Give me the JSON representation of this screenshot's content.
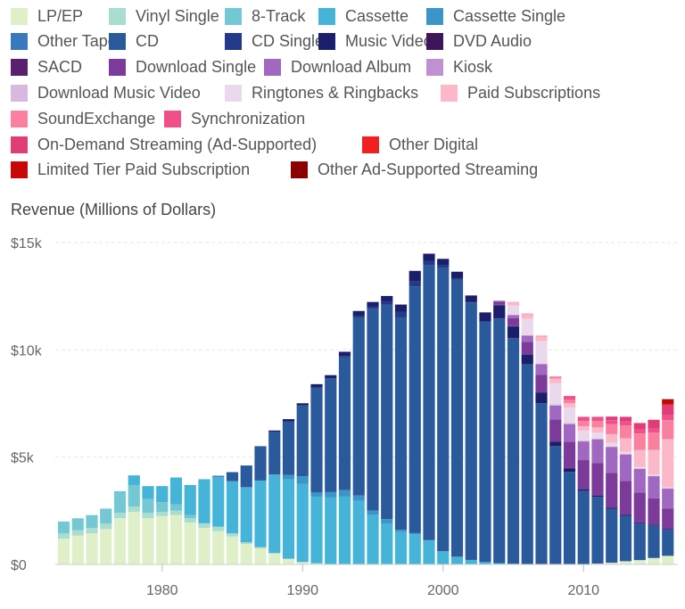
{
  "chart_data": {
    "type": "bar",
    "stacked": true,
    "ylabel": "Revenue (Millions of Dollars)",
    "xlabel": "",
    "ylim": [
      0,
      15000
    ],
    "y_ticks": [
      0,
      5000,
      10000,
      15000
    ],
    "y_tick_labels": [
      "$0",
      "$5k",
      "$10k",
      "$15k"
    ],
    "x_ticks": [
      1980,
      1990,
      2000,
      2010
    ],
    "x_tick_labels": [
      "1980",
      "1990",
      "2000",
      "2010"
    ],
    "grid": true,
    "legend_position": "top",
    "categories": [
      1973,
      1974,
      1975,
      1976,
      1977,
      1978,
      1979,
      1980,
      1981,
      1982,
      1983,
      1984,
      1985,
      1986,
      1987,
      1988,
      1989,
      1990,
      1991,
      1992,
      1993,
      1994,
      1995,
      1996,
      1997,
      1998,
      1999,
      2000,
      2001,
      2002,
      2003,
      2004,
      2005,
      2006,
      2007,
      2008,
      2009,
      2010,
      2011,
      2012,
      2013,
      2014,
      2015,
      2016
    ],
    "series": [
      {
        "name": "LP/EP",
        "color": "#dff0c8",
        "values": [
          1200,
          1350,
          1450,
          1650,
          2150,
          2450,
          2150,
          2250,
          2300,
          1950,
          1700,
          1550,
          1300,
          950,
          750,
          500,
          250,
          100,
          50,
          20,
          10,
          10,
          10,
          10,
          10,
          10,
          10,
          10,
          10,
          10,
          10,
          10,
          10,
          10,
          10,
          10,
          10,
          20,
          40,
          80,
          150,
          200,
          300,
          400
        ]
      },
      {
        "name": "Vinyl Single",
        "color": "#a8ddd0",
        "values": [
          250,
          250,
          250,
          250,
          250,
          250,
          250,
          200,
          200,
          200,
          200,
          200,
          150,
          80,
          60,
          40,
          20,
          10,
          0,
          0,
          0,
          0,
          0,
          0,
          0,
          0,
          0,
          0,
          0,
          0,
          0,
          0,
          0,
          0,
          0,
          0,
          0,
          0,
          0,
          0,
          0,
          0,
          0,
          0
        ]
      },
      {
        "name": "8-Track",
        "color": "#74c8d4",
        "values": [
          550,
          550,
          600,
          700,
          950,
          1000,
          650,
          450,
          300,
          150,
          20,
          10,
          0,
          0,
          0,
          0,
          0,
          0,
          0,
          0,
          0,
          0,
          0,
          0,
          0,
          0,
          0,
          0,
          0,
          0,
          0,
          0,
          0,
          0,
          0,
          0,
          0,
          0,
          0,
          0,
          0,
          0,
          0,
          0
        ]
      },
      {
        "name": "Cassette",
        "color": "#45b4d8",
        "values": [
          0,
          0,
          0,
          0,
          50,
          450,
          600,
          750,
          1250,
          1400,
          2050,
          2300,
          2400,
          2550,
          3100,
          3650,
          3700,
          3650,
          3100,
          3100,
          3150,
          2950,
          2300,
          1900,
          1500,
          1400,
          1100,
          600,
          350,
          200,
          100,
          50,
          20,
          10,
          0,
          0,
          0,
          0,
          0,
          0,
          0,
          0,
          0,
          0
        ]
      },
      {
        "name": "Cassette Single",
        "color": "#3a96c8",
        "values": [
          0,
          0,
          0,
          0,
          0,
          0,
          0,
          0,
          0,
          0,
          0,
          0,
          0,
          0,
          0,
          0,
          200,
          350,
          200,
          250,
          300,
          250,
          200,
          200,
          100,
          50,
          20,
          10,
          0,
          0,
          0,
          0,
          0,
          0,
          0,
          0,
          0,
          0,
          0,
          0,
          0,
          0,
          0,
          0
        ]
      },
      {
        "name": "Other Tapes",
        "color": "#3a78bd",
        "values": [
          0,
          0,
          0,
          0,
          0,
          0,
          0,
          0,
          0,
          0,
          0,
          50,
          50,
          30,
          0,
          0,
          0,
          0,
          0,
          0,
          0,
          0,
          0,
          0,
          0,
          0,
          0,
          0,
          0,
          0,
          0,
          0,
          0,
          0,
          0,
          0,
          0,
          0,
          0,
          0,
          0,
          0,
          0,
          0
        ]
      },
      {
        "name": "CD",
        "color": "#2a5a9c",
        "values": [
          0,
          0,
          0,
          0,
          0,
          0,
          0,
          0,
          0,
          0,
          0,
          20,
          400,
          1000,
          1600,
          2000,
          2500,
          3300,
          4900,
          5300,
          6200,
          8300,
          9400,
          10000,
          9900,
          11500,
          12800,
          13200,
          12900,
          12000,
          11200,
          11400,
          10500,
          9300,
          7500,
          5500,
          4300,
          3400,
          3100,
          2500,
          2100,
          1700,
          1500,
          1200
        ]
      },
      {
        "name": "CD Single",
        "color": "#233a8a",
        "values": [
          0,
          0,
          0,
          0,
          0,
          0,
          0,
          0,
          0,
          0,
          0,
          0,
          0,
          0,
          0,
          0,
          0,
          0,
          0,
          0,
          50,
          50,
          100,
          150,
          270,
          220,
          200,
          140,
          80,
          25,
          10,
          10,
          10,
          10,
          10,
          10,
          10,
          10,
          10,
          10,
          10,
          10,
          10,
          10
        ]
      },
      {
        "name": "Music Video",
        "color": "#1b1f6b",
        "values": [
          0,
          0,
          0,
          0,
          0,
          0,
          0,
          0,
          0,
          0,
          0,
          0,
          0,
          0,
          0,
          50,
          100,
          100,
          150,
          150,
          200,
          250,
          220,
          250,
          330,
          500,
          350,
          280,
          300,
          290,
          400,
          600,
          550,
          450,
          480,
          200,
          160,
          80,
          60,
          50,
          50,
          40,
          40,
          40
        ]
      },
      {
        "name": "DVD Audio",
        "color": "#3e1558",
        "values": [
          0,
          0,
          0,
          0,
          0,
          0,
          0,
          0,
          0,
          0,
          0,
          0,
          0,
          0,
          0,
          0,
          0,
          0,
          0,
          0,
          0,
          0,
          0,
          0,
          0,
          0,
          0,
          0,
          0,
          10,
          10,
          10,
          10,
          10,
          10,
          0,
          0,
          0,
          0,
          0,
          0,
          0,
          0,
          0
        ]
      },
      {
        "name": "SACD",
        "color": "#5a2070",
        "values": [
          0,
          0,
          0,
          0,
          0,
          0,
          0,
          0,
          0,
          0,
          0,
          0,
          0,
          0,
          0,
          0,
          0,
          0,
          0,
          0,
          0,
          0,
          0,
          0,
          0,
          0,
          0,
          0,
          0,
          0,
          20,
          20,
          20,
          10,
          10,
          10,
          10,
          10,
          10,
          10,
          10,
          10,
          10,
          10
        ]
      },
      {
        "name": "Download Single",
        "color": "#7c3a9a",
        "values": [
          0,
          0,
          0,
          0,
          0,
          0,
          0,
          0,
          0,
          0,
          0,
          0,
          0,
          0,
          0,
          0,
          0,
          0,
          0,
          0,
          0,
          0,
          0,
          0,
          0,
          0,
          0,
          0,
          0,
          0,
          0,
          140,
          360,
          580,
          810,
          1030,
          1220,
          1340,
          1510,
          1620,
          1570,
          1390,
          1220,
          950
        ]
      },
      {
        "name": "Download Album",
        "color": "#a068c0",
        "values": [
          0,
          0,
          0,
          0,
          0,
          0,
          0,
          0,
          0,
          0,
          0,
          0,
          0,
          0,
          0,
          0,
          0,
          0,
          0,
          0,
          0,
          0,
          0,
          0,
          0,
          0,
          0,
          0,
          0,
          0,
          0,
          50,
          140,
          280,
          500,
          640,
          830,
          870,
          1100,
          1200,
          1230,
          1100,
          1030,
          920
        ]
      },
      {
        "name": "Kiosk",
        "color": "#c090d0",
        "values": [
          0,
          0,
          0,
          0,
          0,
          0,
          0,
          0,
          0,
          0,
          0,
          0,
          0,
          0,
          0,
          0,
          0,
          0,
          0,
          0,
          0,
          0,
          0,
          0,
          0,
          0,
          0,
          0,
          0,
          0,
          0,
          0,
          0,
          0,
          0,
          10,
          10,
          10,
          10,
          10,
          10,
          10,
          10,
          10
        ]
      },
      {
        "name": "Download Music Video",
        "color": "#d8b8e0",
        "values": [
          0,
          0,
          0,
          0,
          0,
          0,
          0,
          0,
          0,
          0,
          0,
          0,
          0,
          0,
          0,
          0,
          0,
          0,
          0,
          0,
          0,
          0,
          0,
          0,
          0,
          0,
          0,
          0,
          0,
          0,
          0,
          10,
          20,
          20,
          30,
          50,
          50,
          40,
          30,
          20,
          20,
          20,
          10,
          10
        ]
      },
      {
        "name": "Ringtones & Ringbacks",
        "color": "#ead8ec",
        "values": [
          0,
          0,
          0,
          0,
          0,
          0,
          0,
          0,
          0,
          0,
          0,
          0,
          0,
          0,
          0,
          0,
          0,
          0,
          0,
          0,
          0,
          0,
          0,
          0,
          0,
          0,
          0,
          0,
          0,
          0,
          0,
          0,
          420,
          770,
          1050,
          980,
          700,
          450,
          280,
          170,
          100,
          70,
          60,
          40
        ]
      },
      {
        "name": "Paid Subscriptions",
        "color": "#fcb8c8",
        "values": [
          0,
          0,
          0,
          0,
          0,
          0,
          0,
          0,
          0,
          0,
          0,
          0,
          0,
          0,
          0,
          0,
          0,
          0,
          0,
          0,
          0,
          0,
          0,
          0,
          0,
          0,
          0,
          0,
          0,
          0,
          0,
          0,
          150,
          210,
          210,
          220,
          210,
          210,
          240,
          400,
          630,
          780,
          1150,
          2250
        ]
      },
      {
        "name": "SoundExchange",
        "color": "#fa80a0",
        "values": [
          0,
          0,
          0,
          0,
          0,
          0,
          0,
          0,
          0,
          0,
          0,
          0,
          0,
          0,
          0,
          0,
          0,
          0,
          0,
          0,
          0,
          0,
          0,
          0,
          0,
          0,
          0,
          0,
          0,
          0,
          0,
          0,
          20,
          30,
          40,
          100,
          160,
          250,
          290,
          460,
          590,
          770,
          800,
          880
        ]
      },
      {
        "name": "Synchronization",
        "color": "#f0508a",
        "values": [
          0,
          0,
          0,
          0,
          0,
          0,
          0,
          0,
          0,
          0,
          0,
          0,
          0,
          0,
          0,
          0,
          0,
          0,
          0,
          0,
          0,
          0,
          0,
          0,
          0,
          0,
          0,
          0,
          0,
          0,
          0,
          0,
          0,
          0,
          0,
          0,
          180,
          190,
          200,
          190,
          190,
          190,
          200,
          230
        ]
      },
      {
        "name": "On-Demand Streaming (Ad-Supported)",
        "color": "#e03c78",
        "values": [
          0,
          0,
          0,
          0,
          0,
          0,
          0,
          0,
          0,
          0,
          0,
          0,
          0,
          0,
          0,
          0,
          0,
          0,
          0,
          0,
          0,
          0,
          0,
          0,
          0,
          0,
          0,
          0,
          0,
          0,
          0,
          0,
          0,
          0,
          0,
          0,
          0,
          0,
          0,
          170,
          220,
          290,
          390,
          470
        ]
      },
      {
        "name": "Other Digital",
        "color": "#f02020",
        "values": [
          0,
          0,
          0,
          0,
          0,
          0,
          0,
          0,
          0,
          0,
          0,
          0,
          0,
          0,
          0,
          0,
          0,
          0,
          0,
          0,
          0,
          0,
          0,
          0,
          0,
          0,
          0,
          0,
          0,
          0,
          0,
          0,
          0,
          0,
          0,
          0,
          0,
          0,
          0,
          0,
          0,
          10,
          10,
          30
        ]
      },
      {
        "name": "Limited Tier Paid Subscription",
        "color": "#c80808",
        "values": [
          0,
          0,
          0,
          0,
          0,
          0,
          0,
          0,
          0,
          0,
          0,
          0,
          0,
          0,
          0,
          0,
          0,
          0,
          0,
          0,
          0,
          0,
          0,
          0,
          0,
          0,
          0,
          0,
          0,
          0,
          0,
          0,
          0,
          0,
          0,
          0,
          0,
          0,
          0,
          0,
          0,
          0,
          0,
          200
        ]
      },
      {
        "name": "Other Ad-Supported Streaming",
        "color": "#8b0000",
        "values": [
          0,
          0,
          0,
          0,
          0,
          0,
          0,
          0,
          0,
          0,
          0,
          0,
          0,
          0,
          0,
          0,
          0,
          0,
          0,
          0,
          0,
          0,
          0,
          0,
          0,
          0,
          0,
          0,
          0,
          0,
          0,
          0,
          0,
          0,
          0,
          0,
          0,
          0,
          0,
          0,
          0,
          0,
          0,
          50
        ]
      }
    ]
  }
}
